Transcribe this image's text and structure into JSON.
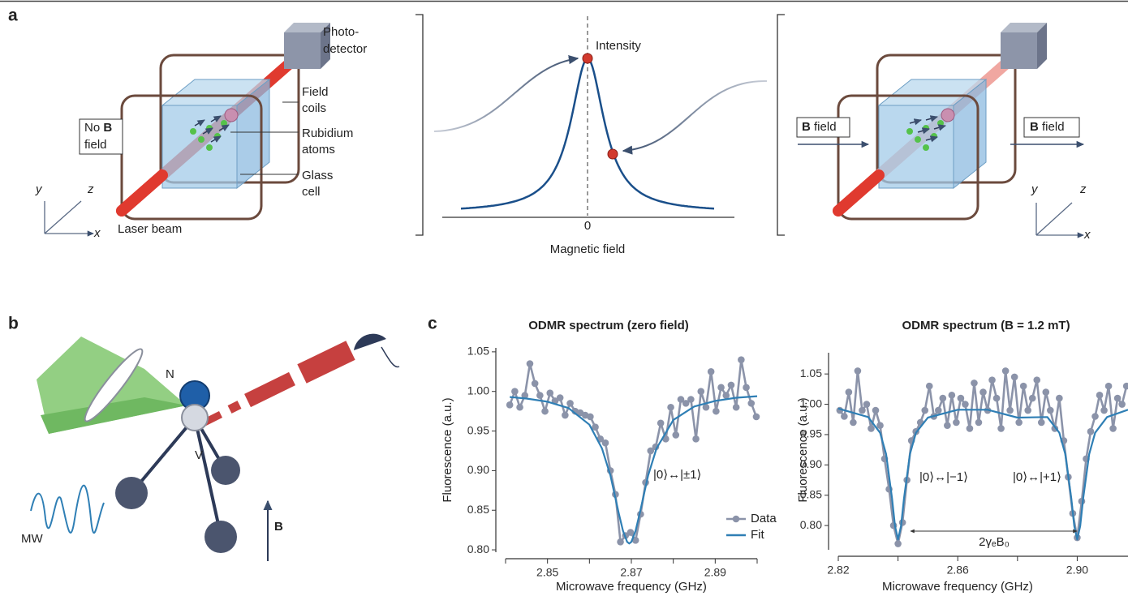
{
  "panels": {
    "a": {
      "label": "a",
      "left": {
        "photodetector": [
          "Photo-",
          "detector"
        ],
        "field_coils": [
          "Field",
          "coils"
        ],
        "rubidium_atoms": [
          "Rubidium",
          "atoms"
        ],
        "glass_cell": [
          "Glass",
          "cell"
        ],
        "no_b_field": [
          "No",
          "B",
          "field"
        ],
        "laser_beam": "Laser beam",
        "axes": [
          "y",
          "z",
          "x"
        ]
      },
      "middle": {
        "intensity": "Intensity",
        "origin": "0",
        "axis_label": "Magnetic field"
      },
      "right": {
        "b_field_in": [
          "B",
          "field"
        ],
        "b_field_out": [
          "B",
          "field"
        ],
        "axes": [
          "y",
          "z",
          "x"
        ]
      }
    },
    "b": {
      "label": "b",
      "nitrogen": "N",
      "vacancy": "V",
      "microwave": "MW",
      "field": "B"
    },
    "c": {
      "label": "c"
    }
  },
  "chart_data": [
    {
      "type": "line",
      "title": "ODMR spectrum (zero field)",
      "xlabel": "Microwave frequency (GHz)",
      "ylabel": "Fluorescence (a.u.)",
      "xlim": [
        2.84,
        2.9
      ],
      "ylim": [
        0.797,
        1.055
      ],
      "xticks": [
        2.85,
        2.87,
        2.89
      ],
      "xminorticks": [
        2.84,
        2.86,
        2.88,
        2.9
      ],
      "yticks": [
        {
          "value": 0.8,
          "label": "0.80"
        },
        0.85,
        {
          "value": 0.9,
          "label": "0.90"
        },
        0.95,
        {
          "value": 1.0,
          "label": "1.00"
        },
        1.05
      ],
      "legend": "lower right",
      "annotations": [
        "|0⟩↔|±1⟩"
      ],
      "series": [
        {
          "name": "Data",
          "color": "#8b93a9",
          "marker": true,
          "x": [
            2.841,
            2.8422,
            2.8434,
            2.8446,
            2.8458,
            2.847,
            2.8482,
            2.8494,
            2.8506,
            2.8518,
            2.853,
            2.8542,
            2.8554,
            2.8566,
            2.8578,
            2.859,
            2.8602,
            2.8614,
            2.8626,
            2.8638,
            2.865,
            2.8662,
            2.8674,
            2.8686,
            2.8698,
            2.871,
            2.8722,
            2.8734,
            2.8746,
            2.8758,
            2.877,
            2.8782,
            2.8794,
            2.8806,
            2.8818,
            2.883,
            2.8842,
            2.8854,
            2.8866,
            2.8878,
            2.889,
            2.8902,
            2.8914,
            2.8926,
            2.8938,
            2.895,
            2.8962,
            2.8974,
            2.8986,
            2.8998
          ],
          "values": [
            0.983,
            1.0,
            0.98,
            0.995,
            1.035,
            1.01,
            0.995,
            0.975,
            0.998,
            0.988,
            0.992,
            0.97,
            0.985,
            0.975,
            0.973,
            0.97,
            0.968,
            0.955,
            0.94,
            0.935,
            0.9,
            0.87,
            0.81,
            0.818,
            0.822,
            0.812,
            0.845,
            0.885,
            0.925,
            0.93,
            0.96,
            0.94,
            0.98,
            0.945,
            0.99,
            0.985,
            0.99,
            0.94,
            1.0,
            0.98,
            1.025,
            0.975,
            1.005,
            0.995,
            1.008,
            0.98,
            1.04,
            1.005,
            0.985,
            0.968
          ]
        },
        {
          "name": "Fit",
          "color": "#2f7fb5",
          "marker": false,
          "x": [
            2.841,
            2.845,
            2.85,
            2.855,
            2.86,
            2.863,
            2.865,
            2.867,
            2.868,
            2.869,
            2.8695,
            2.87,
            2.871,
            2.872,
            2.874,
            2.876,
            2.88,
            2.885,
            2.89,
            2.895,
            2.9
          ],
          "values": [
            0.993,
            0.991,
            0.987,
            0.979,
            0.958,
            0.928,
            0.894,
            0.846,
            0.824,
            0.81,
            0.808,
            0.81,
            0.824,
            0.846,
            0.894,
            0.928,
            0.964,
            0.981,
            0.988,
            0.992,
            0.994
          ]
        }
      ]
    },
    {
      "type": "line",
      "title": "ODMR spectrum (B = 1.2 mT)",
      "xlabel": "Microwave frequency (GHz)",
      "ylabel": "Fluorescence (a.u.)",
      "xlim": [
        2.82,
        2.917
      ],
      "ylim": [
        0.76,
        1.085
      ],
      "xticks": [
        2.82,
        2.86,
        {
          "value": 2.9,
          "label": "2.90"
        }
      ],
      "xminorticks": [
        2.84,
        2.88
      ],
      "yticks": [
        {
          "value": 0.8,
          "label": "0.80"
        },
        0.85,
        {
          "value": 0.9,
          "label": "0.90"
        },
        0.95,
        {
          "value": 1.0,
          "label": "1.00"
        },
        1.05
      ],
      "annotations": [
        "|0⟩↔|−1⟩",
        "|0⟩↔|+1⟩",
        "2γₑB₀"
      ],
      "series": [
        {
          "color": "#8b93a9",
          "marker": true,
          "x": [
            2.8205,
            2.822,
            2.8235,
            2.825,
            2.8265,
            2.828,
            2.8295,
            2.831,
            2.8325,
            2.834,
            2.8355,
            2.837,
            2.8385,
            2.84,
            2.8415,
            2.843,
            2.8445,
            2.846,
            2.8475,
            2.849,
            2.8505,
            2.852,
            2.8535,
            2.855,
            2.8565,
            2.858,
            2.8595,
            2.861,
            2.8625,
            2.864,
            2.8655,
            2.867,
            2.8685,
            2.87,
            2.8715,
            2.873,
            2.8745,
            2.876,
            2.8775,
            2.879,
            2.8805,
            2.882,
            2.8835,
            2.885,
            2.8865,
            2.888,
            2.8895,
            2.891,
            2.8925,
            2.894,
            2.8955,
            2.897,
            2.8985,
            2.9,
            2.9015,
            2.903,
            2.9045,
            2.906,
            2.9075,
            2.909,
            2.9105,
            2.912,
            2.9135,
            2.915,
            2.9165
          ],
          "values": [
            0.99,
            0.98,
            1.02,
            0.97,
            1.055,
            0.99,
            1.0,
            0.96,
            0.99,
            0.965,
            0.91,
            0.86,
            0.8,
            0.77,
            0.805,
            0.875,
            0.94,
            0.955,
            0.97,
            0.99,
            1.03,
            0.98,
            0.99,
            1.01,
            0.965,
            1.015,
            0.97,
            1.01,
            1.0,
            0.96,
            1.035,
            0.97,
            1.02,
            0.99,
            1.04,
            1.01,
            0.96,
            1.055,
            0.99,
            1.045,
            0.97,
            1.03,
            0.99,
            1.01,
            1.04,
            0.97,
            1.02,
            0.99,
            0.96,
            1.01,
            0.94,
            0.88,
            0.82,
            0.78,
            0.84,
            0.91,
            0.955,
            0.98,
            1.015,
            0.99,
            1.03,
            0.96,
            1.01,
            1.0,
            1.03
          ]
        },
        {
          "color": "#2f7fb5",
          "marker": false,
          "x": [
            2.82,
            2.83,
            2.834,
            2.836,
            2.838,
            2.839,
            2.84,
            2.841,
            2.842,
            2.844,
            2.846,
            2.85,
            2.86,
            2.87,
            2.88,
            2.89,
            2.894,
            2.896,
            2.898,
            2.899,
            2.9,
            2.901,
            2.902,
            2.904,
            2.906,
            2.91,
            2.917
          ],
          "values": [
            0.993,
            0.979,
            0.953,
            0.918,
            0.845,
            0.799,
            0.777,
            0.799,
            0.845,
            0.918,
            0.953,
            0.978,
            0.991,
            0.991,
            0.978,
            0.979,
            0.953,
            0.918,
            0.845,
            0.799,
            0.777,
            0.799,
            0.845,
            0.918,
            0.953,
            0.979,
            0.991
          ]
        }
      ]
    }
  ]
}
